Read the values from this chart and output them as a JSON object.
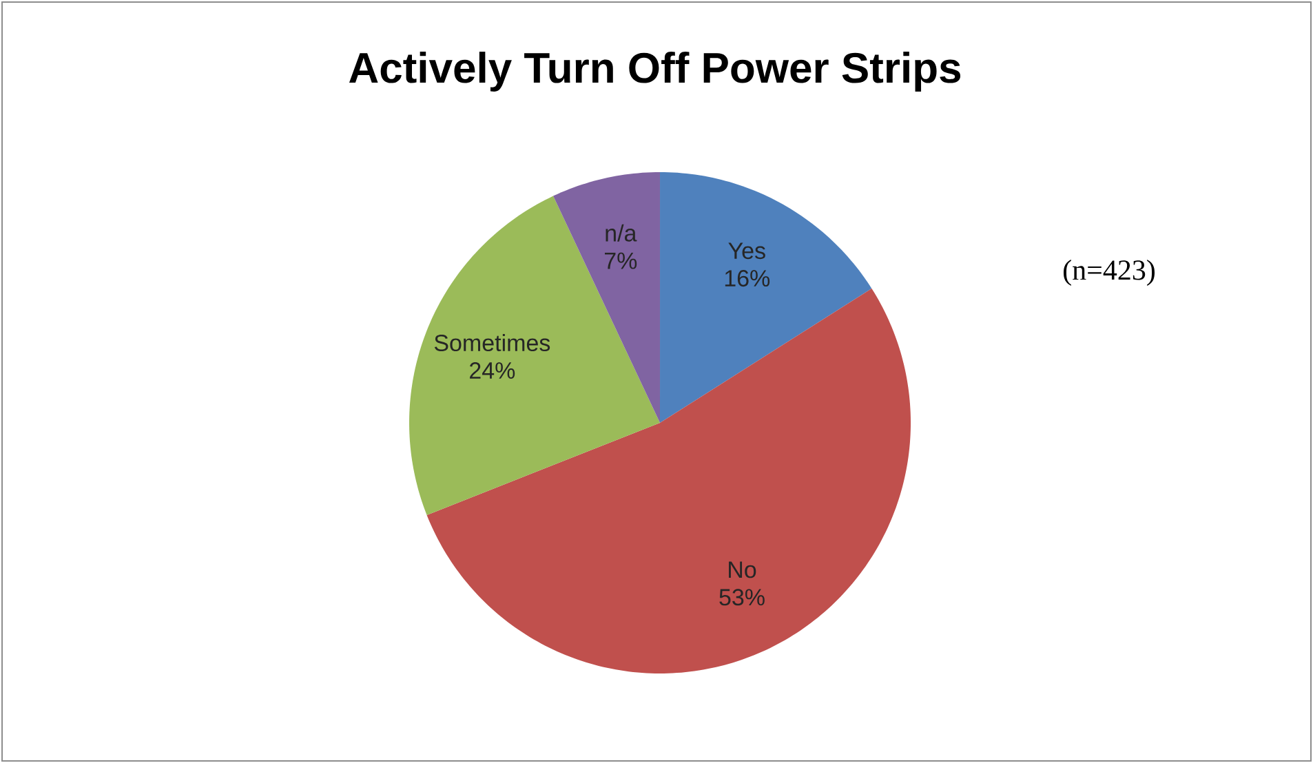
{
  "chart_data": {
    "type": "pie",
    "title": "Actively Turn Off Power Strips",
    "categories": [
      "Yes",
      "No",
      "Sometimes",
      "n/a"
    ],
    "values": [
      16,
      53,
      24,
      7
    ],
    "value_labels": [
      "16%",
      "53%",
      "24%",
      "7%"
    ],
    "colors": [
      "#4f81bd",
      "#c0504d",
      "#9bbb59",
      "#8064a2"
    ],
    "annotations": [
      "(n=423)"
    ]
  }
}
